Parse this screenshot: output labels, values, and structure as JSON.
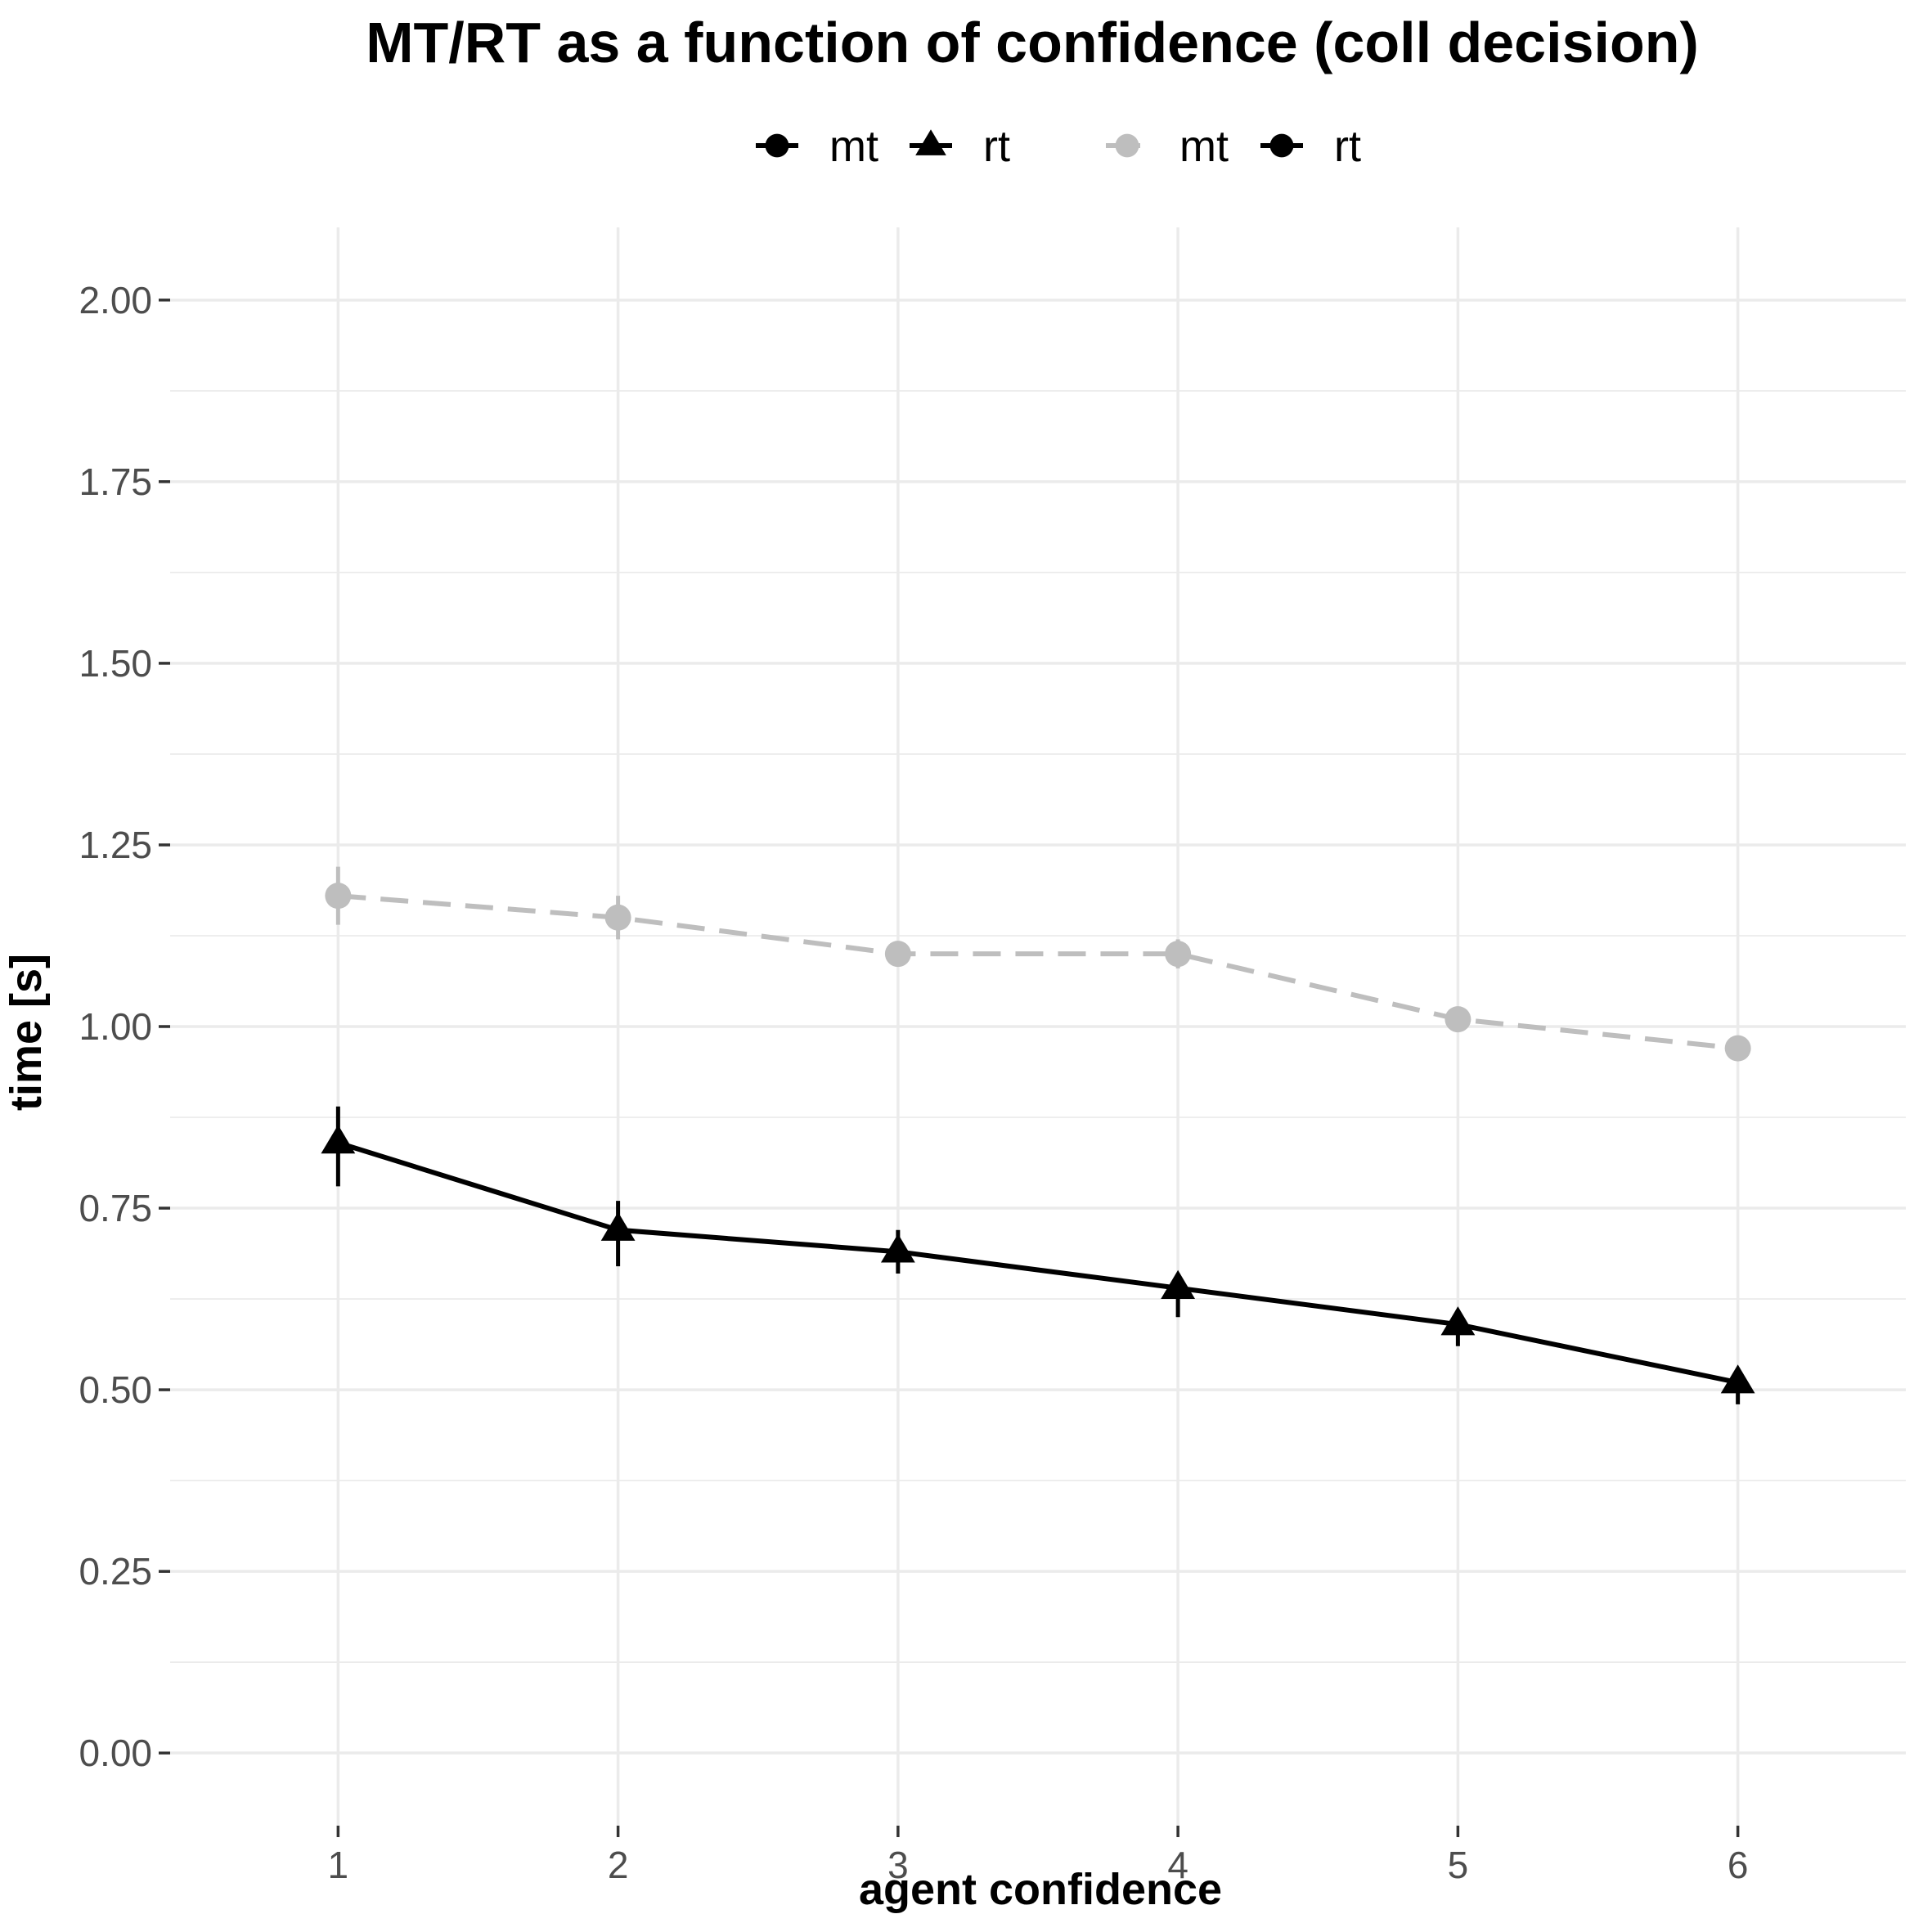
{
  "chart_data": {
    "type": "line",
    "title": "MT/RT as a function of confidence (coll decision)",
    "xlabel": "agent confidence",
    "ylabel": "time [s]",
    "x": [
      1,
      2,
      3,
      4,
      5,
      6
    ],
    "xlim": [
      0.4,
      6.6
    ],
    "ylim": [
      -0.1,
      2.1
    ],
    "y_ticks": [
      "0.00",
      "0.25",
      "0.50",
      "0.75",
      "1.00",
      "1.25",
      "1.50",
      "1.75",
      "2.00"
    ],
    "x_ticks": [
      "1",
      "2",
      "3",
      "4",
      "5",
      "6"
    ],
    "grid": true,
    "legend_position": "top",
    "legend": [
      {
        "label": "mt",
        "marker": "circle",
        "color": "#000000",
        "line": "solid"
      },
      {
        "label": "rt",
        "marker": "triangle",
        "color": "#000000",
        "line": "solid"
      },
      {
        "label": "mt",
        "marker": "circle",
        "color": "#bebebe",
        "line": "dashed"
      },
      {
        "label": "rt",
        "marker": "circle",
        "color": "#000000",
        "line": "solid"
      }
    ],
    "series": [
      {
        "values": [
          1.18,
          1.15,
          1.1,
          1.1,
          1.01,
          0.97
        ],
        "err_low": [
          1.14,
          1.12,
          1.09,
          1.08,
          1.0,
          0.96
        ],
        "err_high": [
          1.22,
          1.18,
          1.11,
          1.12,
          1.02,
          0.98
        ],
        "marker": "circle",
        "color": "#bebebe",
        "line": "dashed"
      },
      {
        "values": [
          0.84,
          0.72,
          0.69,
          0.64,
          0.59,
          0.51
        ],
        "err_low": [
          0.78,
          0.67,
          0.66,
          0.6,
          0.56,
          0.48
        ],
        "err_high": [
          0.89,
          0.76,
          0.72,
          0.66,
          0.61,
          0.53
        ],
        "marker": "triangle",
        "color": "#000000",
        "line": "solid"
      }
    ]
  }
}
